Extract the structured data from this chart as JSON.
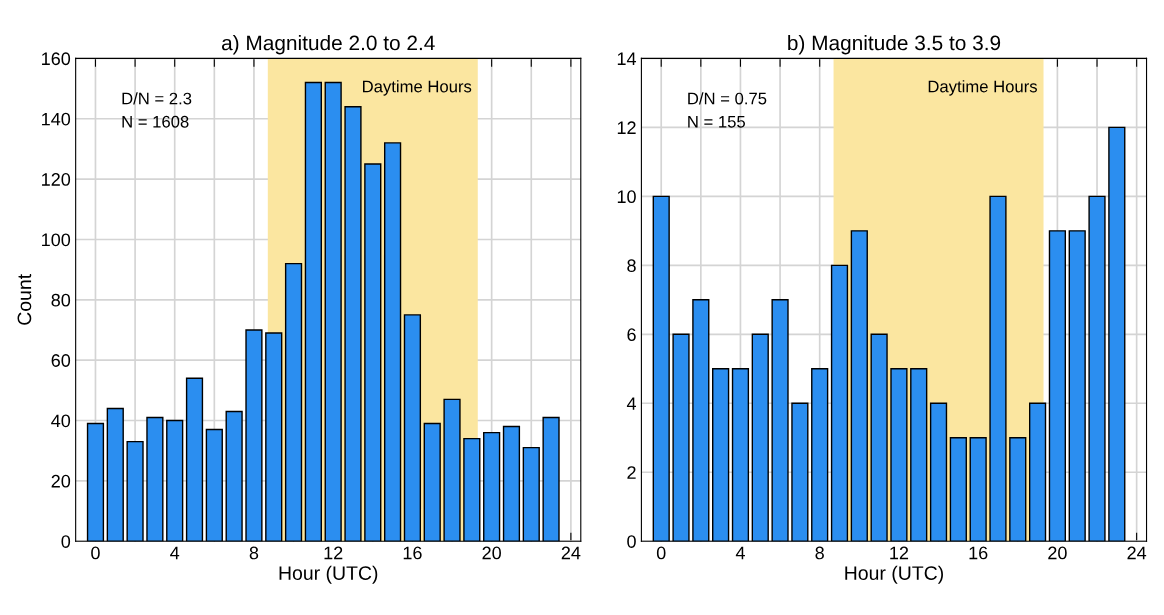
{
  "chart_data": [
    {
      "type": "bar",
      "title": "a) Magnitude 2.0 to 2.4",
      "xlabel": "Hour (UTC)",
      "ylabel": "Count",
      "x": [
        0,
        1,
        2,
        3,
        4,
        5,
        6,
        7,
        8,
        9,
        10,
        11,
        12,
        13,
        14,
        15,
        16,
        17,
        18,
        19,
        20,
        21,
        22,
        23
      ],
      "series": [
        {
          "color": "#2b8ef0",
          "values": [
            39,
            44,
            33,
            41,
            40,
            54,
            37,
            43,
            70,
            69,
            92,
            152,
            152,
            144,
            125,
            132,
            75,
            39,
            47,
            34,
            36,
            38,
            31,
            41
          ]
        }
      ],
      "xlim": [
        -1,
        24.5
      ],
      "xticks": [
        0,
        {
          "value": 2,
          "label": null
        },
        4,
        {
          "value": 6,
          "label": null
        },
        8,
        {
          "value": 10,
          "label": null
        },
        12,
        {
          "value": 14,
          "label": null
        },
        16,
        {
          "value": 18,
          "label": null
        },
        20,
        {
          "value": 22,
          "label": null
        },
        24
      ],
      "ylim": [
        0,
        160
      ],
      "yticks": [
        0,
        20,
        40,
        60,
        80,
        100,
        120,
        140,
        160
      ],
      "grid": true,
      "bands": [
        {
          "axis": "x",
          "from": 8.7,
          "to": 19.3,
          "label": "Daytime Hours",
          "color": "#fbe6a0"
        }
      ],
      "annotations": [
        "D/N = 2.3",
        "N = 1608"
      ]
    },
    {
      "type": "bar",
      "title": "b) Magnitude 3.5 to 3.9",
      "xlabel": "Hour (UTC)",
      "x": [
        0,
        1,
        2,
        3,
        4,
        5,
        6,
        7,
        8,
        9,
        10,
        11,
        12,
        13,
        14,
        15,
        16,
        17,
        18,
        19,
        20,
        21,
        22,
        23
      ],
      "series": [
        {
          "color": "#2b8ef0",
          "values": [
            10,
            6,
            7,
            5,
            5,
            6,
            7,
            4,
            5,
            8,
            9,
            6,
            5,
            5,
            4,
            3,
            3,
            10,
            3,
            4,
            9,
            9,
            10,
            12
          ]
        }
      ],
      "xlim": [
        -1,
        24.5
      ],
      "xticks": [
        0,
        {
          "value": 2,
          "label": null
        },
        4,
        {
          "value": 6,
          "label": null
        },
        8,
        {
          "value": 10,
          "label": null
        },
        12,
        {
          "value": 14,
          "label": null
        },
        16,
        {
          "value": 18,
          "label": null
        },
        20,
        {
          "value": 22,
          "label": null
        },
        24
      ],
      "ylim": [
        0,
        14
      ],
      "yticks": [
        0,
        2,
        4,
        6,
        8,
        10,
        12,
        14
      ],
      "grid": true,
      "bands": [
        {
          "axis": "x",
          "from": 8.7,
          "to": 19.3,
          "label": "Daytime Hours",
          "color": "#fbe6a0"
        }
      ],
      "annotations": [
        "D/N = 0.75",
        "N = 155"
      ]
    }
  ]
}
